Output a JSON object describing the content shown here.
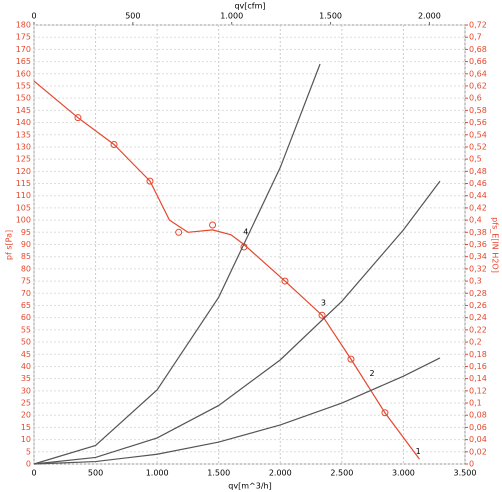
{
  "chart_data": {
    "type": "line",
    "xlabel": "qv[m^3/h]",
    "x2label": "qv[cfm]",
    "ylabel": "pf s[Pa]",
    "y2label": "pfs_E[IN H2O]",
    "xlim": [
      0,
      3500
    ],
    "xticks": [
      0,
      500,
      {
        "value": 1000,
        "label": "1.000"
      },
      {
        "value": 1500,
        "label": "1.500"
      },
      {
        "value": 2000,
        "label": "2.000"
      },
      {
        "value": 2500,
        "label": "2.500"
      },
      {
        "value": 3000,
        "label": "3.000"
      },
      {
        "value": 3500,
        "label": "3.500"
      }
    ],
    "x2lim": [
      0,
      2180
    ],
    "x2ticks": [
      0,
      500,
      {
        "value": 1000,
        "label": "1.000"
      },
      {
        "value": 1500,
        "label": "1.500"
      },
      {
        "value": 2000,
        "label": "2.000"
      }
    ],
    "ylim": [
      0,
      180
    ],
    "yticks": [
      0,
      5,
      10,
      15,
      20,
      25,
      30,
      35,
      40,
      45,
      50,
      55,
      60,
      65,
      70,
      75,
      80,
      85,
      90,
      95,
      100,
      105,
      110,
      115,
      120,
      125,
      130,
      135,
      140,
      145,
      150,
      155,
      160,
      165,
      170,
      175,
      180
    ],
    "y2lim": [
      0,
      0.72
    ],
    "y2ticks": [
      {
        "value": 0,
        "label": "0"
      },
      {
        "value": 0.02,
        "label": "0,02"
      },
      {
        "value": 0.04,
        "label": "0,04"
      },
      {
        "value": 0.06,
        "label": "0,06"
      },
      {
        "value": 0.08,
        "label": "0,08"
      },
      {
        "value": 0.1,
        "label": "0,1"
      },
      {
        "value": 0.12,
        "label": "0,12"
      },
      {
        "value": 0.14,
        "label": "0,14"
      },
      {
        "value": 0.16,
        "label": "0,16"
      },
      {
        "value": 0.18,
        "label": "0,18"
      },
      {
        "value": 0.2,
        "label": "0,2"
      },
      {
        "value": 0.22,
        "label": "0,22"
      },
      {
        "value": 0.24,
        "label": "0,24"
      },
      {
        "value": 0.26,
        "label": "0,26"
      },
      {
        "value": 0.28,
        "label": "0,28"
      },
      {
        "value": 0.3,
        "label": "0,3"
      },
      {
        "value": 0.32,
        "label": "0,32"
      },
      {
        "value": 0.34,
        "label": "0,34"
      },
      {
        "value": 0.36,
        "label": "0,36"
      },
      {
        "value": 0.38,
        "label": "0,38"
      },
      {
        "value": 0.4,
        "label": "0,4"
      },
      {
        "value": 0.42,
        "label": "0,42"
      },
      {
        "value": 0.44,
        "label": "0,44"
      },
      {
        "value": 0.46,
        "label": "0,46"
      },
      {
        "value": 0.48,
        "label": "0,48"
      },
      {
        "value": 0.5,
        "label": "0,5"
      },
      {
        "value": 0.52,
        "label": "0,52"
      },
      {
        "value": 0.54,
        "label": "0,54"
      },
      {
        "value": 0.56,
        "label": "0,56"
      },
      {
        "value": 0.58,
        "label": "0,58"
      },
      {
        "value": 0.6,
        "label": "0,6"
      },
      {
        "value": 0.62,
        "label": "0,62"
      },
      {
        "value": 0.64,
        "label": "0,64"
      },
      {
        "value": 0.66,
        "label": "0,66"
      },
      {
        "value": 0.68,
        "label": "0,68"
      },
      {
        "value": 0.7,
        "label": "0,7"
      },
      {
        "value": 0.72,
        "label": "0,72"
      }
    ],
    "grid": true,
    "series": [
      {
        "color": "#e5472d",
        "x": [
          0,
          357,
          650,
          942,
          1100,
          1250,
          1450,
          1600,
          1705,
          2038,
          2339,
          2574,
          2850,
          3130
        ],
        "values": [
          157,
          142,
          131,
          116,
          100,
          95,
          96,
          94,
          90,
          75,
          61,
          43,
          21,
          2
        ],
        "markers": {
          "x": [
            357,
            650,
            942,
            1175,
            1450,
            1705,
            2038,
            2339,
            2574,
            2850
          ],
          "values": [
            142,
            131,
            116,
            95,
            98,
            89,
            75,
            61,
            43,
            21
          ]
        }
      },
      {
        "color": "#555555",
        "x": [
          0,
          500,
          1000,
          1500,
          2000,
          2323
        ],
        "values": [
          0,
          7.6,
          30.4,
          68.4,
          121.6,
          164
        ]
      },
      {
        "color": "#555555",
        "x": [
          0,
          500,
          1000,
          1500,
          2000,
          2500,
          3000,
          3297
        ],
        "values": [
          0,
          2.7,
          10.7,
          24,
          42.7,
          66.7,
          96,
          116
        ]
      },
      {
        "color": "#555555",
        "x": [
          0,
          500,
          1000,
          1500,
          2000,
          2500,
          3000,
          3297
        ],
        "values": [
          0,
          1,
          4,
          9,
          16,
          25,
          36,
          43.5
        ]
      }
    ],
    "annotations": [
      {
        "text": "4",
        "x": 1720,
        "y": 93
      },
      {
        "text": "3",
        "x": 2350,
        "y": 64
      },
      {
        "text": "2",
        "x": 2745,
        "y": 35
      },
      {
        "text": "1",
        "x": 3120,
        "y": 3
      }
    ]
  }
}
